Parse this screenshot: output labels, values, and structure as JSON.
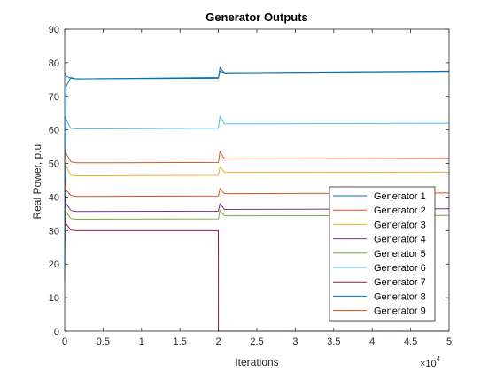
{
  "chart_data": {
    "type": "line",
    "title": "Generator Outputs",
    "xlabel": "Iterations",
    "ylabel": "Real Power, p.u.",
    "x_multiplier_base": "×10",
    "x_multiplier_exp": "4",
    "xlim": [
      0,
      5
    ],
    "ylim": [
      0,
      90
    ],
    "x_ticks": [
      0,
      0.5,
      1,
      1.5,
      2,
      2.5,
      3,
      3.5,
      4,
      4.5,
      5
    ],
    "x_tick_labels": [
      "0",
      "0.5",
      "1",
      "1.5",
      "2",
      "2.5",
      "3",
      "3.5",
      "4",
      "4.5",
      "5"
    ],
    "y_ticks": [
      0,
      10,
      20,
      30,
      40,
      50,
      60,
      70,
      80,
      90
    ],
    "y_tick_labels": [
      "0",
      "10",
      "20",
      "30",
      "40",
      "50",
      "60",
      "70",
      "80",
      "90"
    ],
    "grid": false,
    "legend_position": "bottom-right",
    "series": [
      {
        "name": "Generator 1",
        "color": "#0072BD",
        "points": [
          [
            0,
            15
          ],
          [
            0.02,
            73
          ],
          [
            0.08,
            75.6
          ],
          [
            0.15,
            75.2
          ],
          [
            2.0,
            75.6
          ],
          [
            2.02,
            78.5
          ],
          [
            2.08,
            77.0
          ],
          [
            5.0,
            77.5
          ]
        ]
      },
      {
        "name": "Generator 2",
        "color": "#D95319",
        "points": [
          [
            0,
            45
          ],
          [
            0.02,
            42
          ],
          [
            0.08,
            40.5
          ],
          [
            0.15,
            40.2
          ],
          [
            2.0,
            40.3
          ],
          [
            2.02,
            42.5
          ],
          [
            2.08,
            41.0
          ],
          [
            5.0,
            41.2
          ]
        ]
      },
      {
        "name": "Generator 3",
        "color": "#EDB120",
        "points": [
          [
            0,
            52
          ],
          [
            0.02,
            49
          ],
          [
            0.08,
            46.5
          ],
          [
            0.15,
            46.3
          ],
          [
            2.0,
            46.5
          ],
          [
            2.02,
            49.0
          ],
          [
            2.08,
            47.3
          ],
          [
            5.0,
            47.4
          ]
        ]
      },
      {
        "name": "Generator 4",
        "color": "#7E2F8E",
        "points": [
          [
            0,
            40
          ],
          [
            0.02,
            38
          ],
          [
            0.08,
            36.0
          ],
          [
            0.15,
            35.7
          ],
          [
            2.0,
            35.8
          ],
          [
            2.02,
            38.0
          ],
          [
            2.08,
            36.3
          ],
          [
            5.0,
            36.5
          ]
        ]
      },
      {
        "name": "Generator 5",
        "color": "#77AC30",
        "points": [
          [
            0,
            37
          ],
          [
            0.02,
            35.5
          ],
          [
            0.08,
            33.6
          ],
          [
            0.15,
            33.4
          ],
          [
            2.0,
            33.5
          ],
          [
            2.02,
            36.0
          ],
          [
            2.08,
            34.4
          ],
          [
            5.0,
            34.5
          ]
        ]
      },
      {
        "name": "Generator 6",
        "color": "#4DBEEE",
        "points": [
          [
            0,
            64
          ],
          [
            0.02,
            63
          ],
          [
            0.08,
            60.5
          ],
          [
            0.15,
            60.3
          ],
          [
            2.0,
            60.5
          ],
          [
            2.02,
            64.0
          ],
          [
            2.08,
            61.8
          ],
          [
            5.0,
            62.0
          ]
        ]
      },
      {
        "name": "Generator 7",
        "color": "#A2142F",
        "points": [
          [
            0,
            33
          ],
          [
            0.02,
            32
          ],
          [
            0.08,
            30.2
          ],
          [
            0.15,
            30.0
          ],
          [
            1.999,
            30.0
          ],
          [
            2.0,
            0
          ],
          [
            5.0,
            0
          ]
        ]
      },
      {
        "name": "Generator 8",
        "color": "#0072BD",
        "points": [
          [
            0,
            77
          ],
          [
            0.02,
            76
          ],
          [
            0.08,
            75.4
          ],
          [
            0.15,
            75.2
          ],
          [
            2.0,
            75.4
          ],
          [
            2.02,
            77.5
          ],
          [
            2.08,
            77.0
          ],
          [
            5.0,
            77.4
          ]
        ]
      },
      {
        "name": "Generator 9",
        "color": "#D95319",
        "points": [
          [
            0,
            54
          ],
          [
            0.02,
            53
          ],
          [
            0.08,
            50.5
          ],
          [
            0.15,
            50.2
          ],
          [
            2.0,
            50.3
          ],
          [
            2.02,
            53.5
          ],
          [
            2.08,
            51.3
          ],
          [
            5.0,
            51.5
          ]
        ]
      }
    ]
  }
}
